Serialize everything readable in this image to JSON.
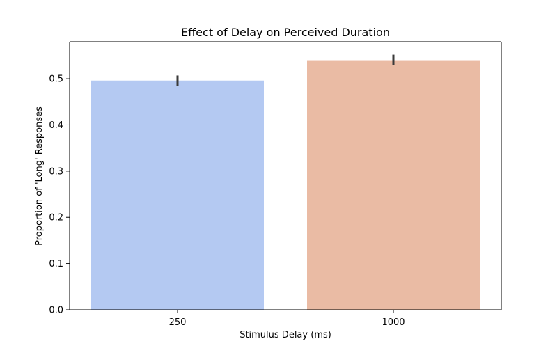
{
  "chart_data": {
    "type": "bar",
    "title": "Effect of Delay on Perceived Duration",
    "xlabel": "Stimulus Delay (ms)",
    "ylabel": "Proportion of 'Long' Responses",
    "categories": [
      "250",
      "1000"
    ],
    "values": [
      0.496,
      0.54
    ],
    "error_low": [
      0.485,
      0.529
    ],
    "error_high": [
      0.507,
      0.552
    ],
    "ylim": [
      0,
      0.58
    ],
    "yticks": [
      0.0,
      0.1,
      0.2,
      0.3,
      0.4,
      0.5
    ],
    "ytick_labels": [
      "0.0",
      "0.1",
      "0.2",
      "0.3",
      "0.4",
      "0.5"
    ],
    "bar_colors": [
      "#b4c9f2",
      "#eabba4"
    ],
    "error_bar_color": "#3a3a3a",
    "grid": false,
    "legend": "none"
  }
}
